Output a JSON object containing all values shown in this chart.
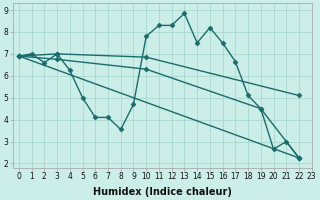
{
  "xlabel": "Humidex (Indice chaleur)",
  "bg_color": "#cceee8",
  "line_color": "#1a6b6b",
  "grid_color": "#aad8d0",
  "series": [
    {
      "x": [
        0,
        1,
        2,
        3,
        4,
        5,
        6,
        7,
        8,
        9,
        10,
        11,
        12,
        13,
        14,
        15,
        16,
        17,
        18,
        19,
        20,
        21,
        22
      ],
      "y": [
        6.9,
        7.0,
        6.6,
        7.0,
        6.25,
        5.0,
        4.1,
        4.1,
        3.55,
        4.7,
        7.8,
        8.3,
        8.3,
        8.85,
        7.5,
        8.2,
        7.5,
        6.65,
        5.1,
        4.5,
        2.65,
        3.0,
        2.25
      ]
    },
    {
      "x": [
        0,
        3,
        10,
        22
      ],
      "y": [
        6.9,
        7.0,
        6.85,
        5.1
      ]
    },
    {
      "x": [
        0,
        3,
        10,
        19,
        22
      ],
      "y": [
        6.9,
        6.75,
        6.3,
        4.5,
        2.25
      ]
    },
    {
      "x": [
        0,
        22
      ],
      "y": [
        6.9,
        2.25
      ]
    }
  ],
  "xlim": [
    -0.5,
    22.5
  ],
  "ylim": [
    1.8,
    9.3
  ],
  "yticks": [
    2,
    3,
    4,
    5,
    6,
    7,
    8,
    9
  ],
  "xticks": [
    0,
    1,
    2,
    3,
    4,
    5,
    6,
    7,
    8,
    9,
    10,
    11,
    12,
    13,
    14,
    15,
    16,
    17,
    18,
    19,
    20,
    21,
    22,
    23
  ],
  "xtick_labels": [
    "0",
    "1",
    "2",
    "3",
    "4",
    "5",
    "6",
    "7",
    "8",
    "9",
    "10",
    "11",
    "12",
    "13",
    "14",
    "15",
    "16",
    "17",
    "18",
    "19",
    "20",
    "21",
    "22",
    "23"
  ],
  "tick_fontsize": 5.5,
  "xlabel_fontsize": 7,
  "marker": "D",
  "ms": 2.5,
  "lw": 1.0
}
